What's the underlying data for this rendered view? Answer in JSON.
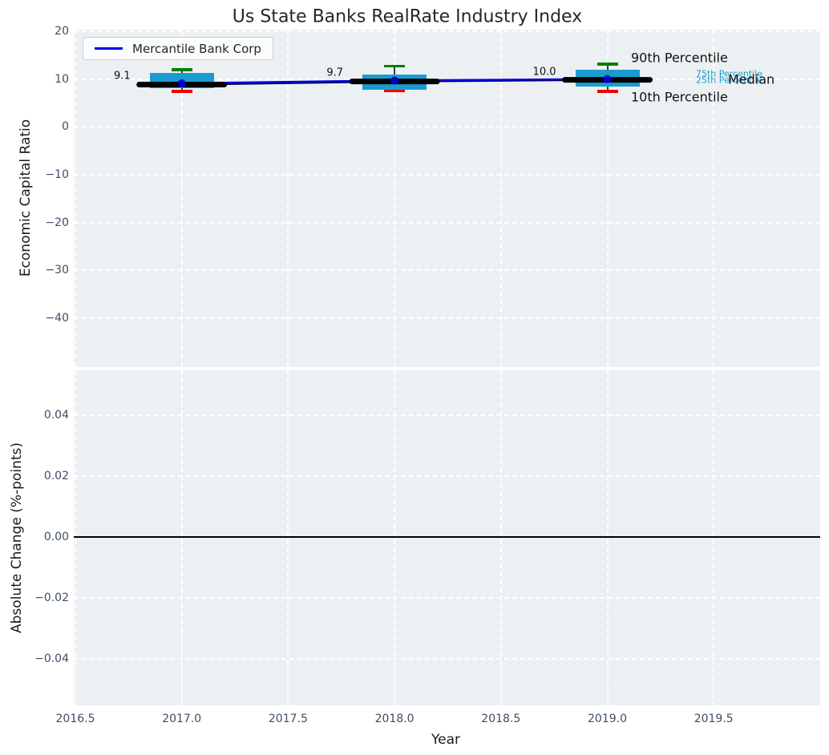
{
  "title": "Us State Banks RealRate Industry Index",
  "legend": {
    "label": "Mercantile Bank Corp"
  },
  "percentile_labels": {
    "p90": "90th Percentile",
    "p75": "75th Percentile",
    "p25": "25th Percentile",
    "median": "Median",
    "p10": "10th Percentile"
  },
  "axes": {
    "xlabel": "Year",
    "xticks": [
      {
        "v": 2016.5,
        "label": "2016.5"
      },
      {
        "v": 2017.0,
        "label": "2017.0"
      },
      {
        "v": 2017.5,
        "label": "2017.5"
      },
      {
        "v": 2018.0,
        "label": "2018.0"
      },
      {
        "v": 2018.5,
        "label": "2018.5"
      },
      {
        "v": 2019.0,
        "label": "2019.0"
      },
      {
        "v": 2019.5,
        "label": "2019.5"
      }
    ],
    "top": {
      "ylabel": "Economic Capital Ratio",
      "yticks": [
        {
          "v": 20,
          "label": "20"
        },
        {
          "v": 10,
          "label": "10"
        },
        {
          "v": 0,
          "label": "0"
        },
        {
          "v": -10,
          "label": "−10"
        },
        {
          "v": -20,
          "label": "−20"
        },
        {
          "v": -30,
          "label": "−30"
        },
        {
          "v": -40,
          "label": "−40"
        }
      ]
    },
    "bottom": {
      "ylabel": "Absolute Change (%-points)",
      "yticks": [
        {
          "v": 0.04,
          "label": "0.04"
        },
        {
          "v": 0.02,
          "label": "0.02"
        },
        {
          "v": 0.0,
          "label": "0.00"
        },
        {
          "v": -0.02,
          "label": "−0.02"
        },
        {
          "v": -0.04,
          "label": "−0.04"
        }
      ]
    }
  },
  "colors": {
    "box": "#1a9cd0",
    "p90_cap": "#008000",
    "p10_cap": "#ee0000",
    "company_line": "#0000ee",
    "company_dot": "#0000cc",
    "median_line": "#000000",
    "plot_bg": "#edf0f2",
    "grid": "#ffffff",
    "tick_text": "#3f4d63",
    "zero_line": "#000000"
  },
  "chart_data": {
    "type": "line+boxplot",
    "title": "Us State Banks RealRate Industry Index",
    "xlabel": "Year",
    "x": [
      2017,
      2018,
      2019
    ],
    "xlim": [
      2016.49,
      2020.0
    ],
    "grid": "white-dashed on gray background",
    "legend_position": "upper left",
    "panels": [
      {
        "ylabel": "Economic Capital Ratio",
        "ylim": [
          -50.4,
          20.4
        ],
        "yticks": [
          20,
          10,
          0,
          -10,
          -20,
          -30,
          -40
        ],
        "series": [
          {
            "name": "Mercantile Bank Corp",
            "type": "line",
            "color": "#0000ee",
            "values": [
              9.1,
              9.7,
              10.0
            ]
          },
          {
            "name": "Median",
            "type": "line",
            "color": "#000000",
            "values": [
              8.85,
              9.5,
              9.85
            ]
          }
        ],
        "boxplots": [
          {
            "year": 2017,
            "p10": 7.4,
            "p25": 8.1,
            "median": 8.85,
            "p75": 11.3,
            "p90": 12.0
          },
          {
            "year": 2018,
            "p10": 7.5,
            "p25": 7.8,
            "median": 9.5,
            "p75": 11.0,
            "p90": 12.7
          },
          {
            "year": 2019,
            "p10": 7.4,
            "p25": 8.4,
            "median": 9.85,
            "p75": 12.0,
            "p90": 13.1
          }
        ],
        "annotations": [
          {
            "x": 2017,
            "text": "9.1"
          },
          {
            "x": 2018,
            "text": "9.7"
          },
          {
            "x": 2019,
            "text": "10.0"
          }
        ]
      },
      {
        "ylabel": "Absolute Change (%-points)",
        "ylim": [
          -0.055,
          0.055
        ],
        "yticks": [
          0.04,
          0.02,
          0.0,
          -0.02,
          -0.04
        ],
        "zero_line": 0.0
      }
    ]
  }
}
